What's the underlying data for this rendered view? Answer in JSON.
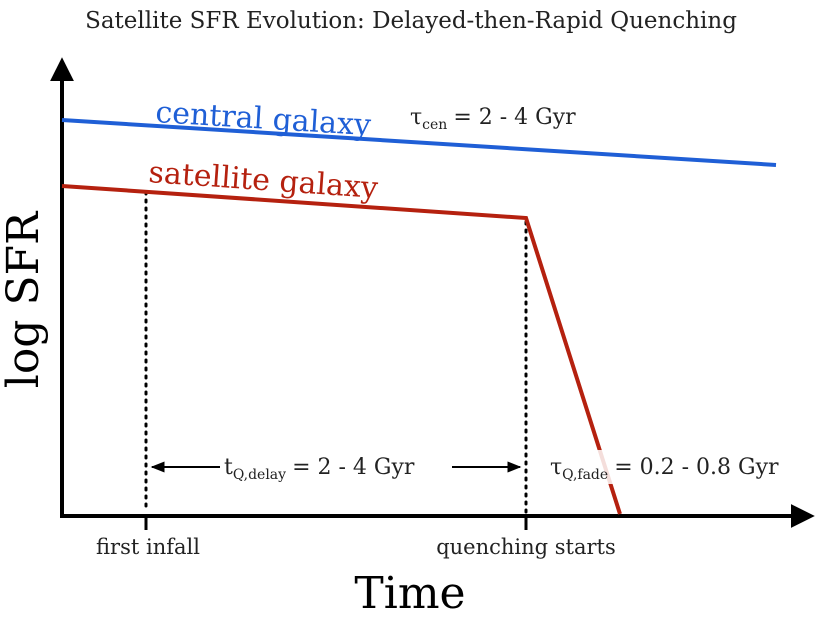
{
  "title": "Satellite SFR Evolution: Delayed-then-Rapid Quenching",
  "axes": {
    "ylabel": "log SFR",
    "xlabel": "Time"
  },
  "curves": {
    "central": {
      "label": "central galaxy",
      "timescale_symbol": "τ",
      "timescale_subscript": "cen",
      "timescale_value": "= 2 - 4 Gyr",
      "color": "#1f5fd6"
    },
    "satellite": {
      "label": "satellite galaxy",
      "color": "#b5210f"
    }
  },
  "markers": {
    "infall": {
      "label": "first infall"
    },
    "quench": {
      "label": "quenching starts"
    }
  },
  "annotations": {
    "delay": {
      "symbol": "t",
      "subscript": "Q,delay",
      "value": "= 2 - 4 Gyr"
    },
    "fade": {
      "symbol": "τ",
      "subscript": "Q,fade",
      "value": "= 0.2 - 0.8 Gyr"
    }
  },
  "colors": {
    "axis": "#000000",
    "text": "#222222"
  }
}
